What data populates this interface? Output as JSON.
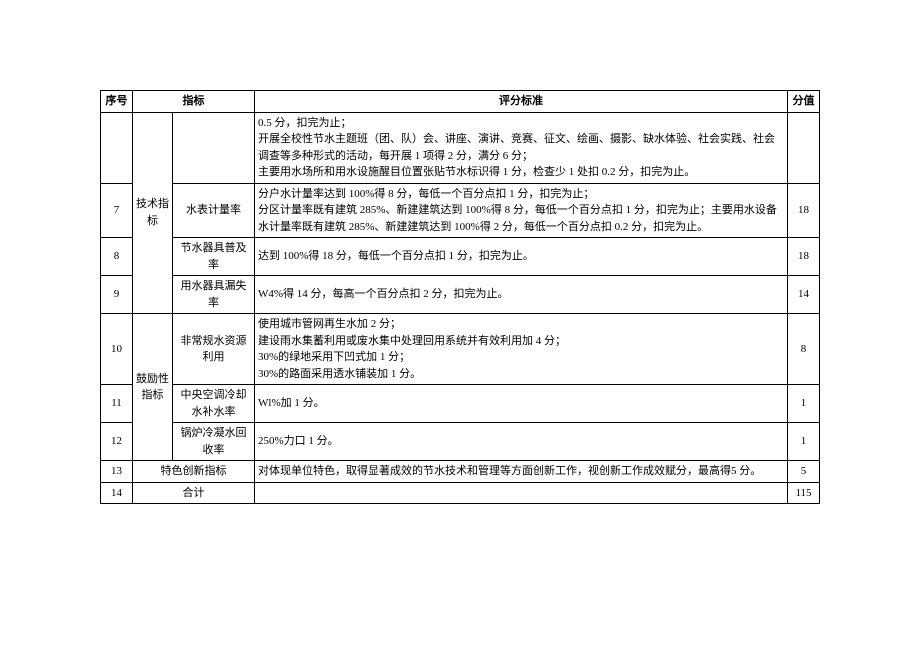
{
  "headers": {
    "index": "序号",
    "indicator": "指标",
    "criteria": "评分标准",
    "score": "分值"
  },
  "top_fragment": {
    "criteria": "0.5 分，扣完为止；\n开展全校性节水主题班（团、队）会、讲座、演讲、竞赛、征文、绘画、摄影、缺水体验、社会实践、社会调查等多种形式的活动，每开展 1 项得 2 分，满分 6 分；\n主要用水场所和用水设施醒目位置张贴节水标识得 1 分，检查少 1 处扣 0.2 分，扣完为止。"
  },
  "rows": [
    {
      "index": "7",
      "category": "技术指标",
      "indicator": "水表计量率",
      "criteria": "分户水计量率达到 100%得 8 分，每低一个百分点扣 1 分，扣完为止；\n分区计量率既有建筑 285%、新建建筑达到 100%得 8 分，每低一个百分点扣 1 分，扣完为止；主要用水设备水计量率既有建筑 285%、新建建筑达到 100%得 2 分，每低一个百分点扣 0.2 分，扣完为止。",
      "score": "18"
    },
    {
      "index": "8",
      "indicator": "节水器具普及率",
      "criteria": "达到 100%得 18 分，每低一个百分点扣 1 分，扣完为止。",
      "score": "18"
    },
    {
      "index": "9",
      "indicator": "用水器具漏失率",
      "criteria": "W4%得 14 分，每高一个百分点扣 2 分，扣完为止。",
      "score": "14"
    },
    {
      "index": "10",
      "category": "鼓励性指标",
      "indicator": "非常规水资源利用",
      "criteria": "使用城市管网再生水加 2 分；\n建设雨水集蓄利用或废水集中处理回用系统并有效利用加 4 分；\n30%的绿地采用下凹式加 1 分；\n30%的路面采用透水铺装加 1 分。",
      "score": "8"
    },
    {
      "index": "11",
      "indicator": "中央空调冷却水补水率",
      "criteria": "Wl%加 1 分。",
      "score": "1"
    },
    {
      "index": "12",
      "indicator": "锅炉冷凝水回收率",
      "criteria": "250%力口 1 分。",
      "score": "1"
    },
    {
      "index": "13",
      "indicator": "特色创新指标",
      "criteria": "对体现单位特色，取得显著成效的节水技术和管理等方面创新工作，视创新工作成效赋分，最高得5 分。",
      "score": "5"
    },
    {
      "index": "14",
      "indicator": "合计",
      "criteria": "",
      "score": "115"
    }
  ]
}
